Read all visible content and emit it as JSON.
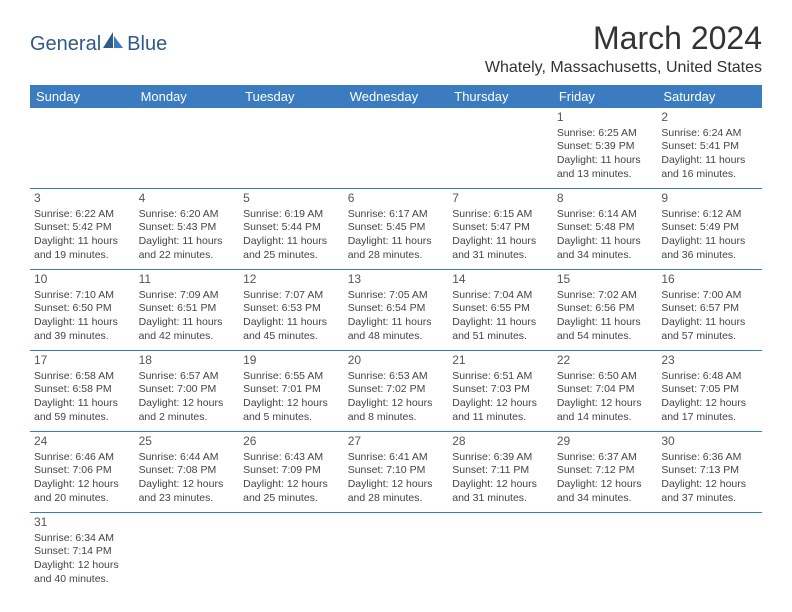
{
  "logo": {
    "text1": "General",
    "text2": "Blue",
    "color": "#2e5b8a",
    "accent": "#3b7bbf"
  },
  "title": "March 2024",
  "location": "Whately, Massachusetts, United States",
  "header_bg": "#3b7bbf",
  "header_fg": "#ffffff",
  "border_color": "#3b7bbf",
  "weekdays": [
    "Sunday",
    "Monday",
    "Tuesday",
    "Wednesday",
    "Thursday",
    "Friday",
    "Saturday"
  ],
  "weeks": [
    [
      null,
      null,
      null,
      null,
      null,
      {
        "n": "1",
        "sunrise": "Sunrise: 6:25 AM",
        "sunset": "Sunset: 5:39 PM",
        "day1": "Daylight: 11 hours",
        "day2": "and 13 minutes."
      },
      {
        "n": "2",
        "sunrise": "Sunrise: 6:24 AM",
        "sunset": "Sunset: 5:41 PM",
        "day1": "Daylight: 11 hours",
        "day2": "and 16 minutes."
      }
    ],
    [
      {
        "n": "3",
        "sunrise": "Sunrise: 6:22 AM",
        "sunset": "Sunset: 5:42 PM",
        "day1": "Daylight: 11 hours",
        "day2": "and 19 minutes."
      },
      {
        "n": "4",
        "sunrise": "Sunrise: 6:20 AM",
        "sunset": "Sunset: 5:43 PM",
        "day1": "Daylight: 11 hours",
        "day2": "and 22 minutes."
      },
      {
        "n": "5",
        "sunrise": "Sunrise: 6:19 AM",
        "sunset": "Sunset: 5:44 PM",
        "day1": "Daylight: 11 hours",
        "day2": "and 25 minutes."
      },
      {
        "n": "6",
        "sunrise": "Sunrise: 6:17 AM",
        "sunset": "Sunset: 5:45 PM",
        "day1": "Daylight: 11 hours",
        "day2": "and 28 minutes."
      },
      {
        "n": "7",
        "sunrise": "Sunrise: 6:15 AM",
        "sunset": "Sunset: 5:47 PM",
        "day1": "Daylight: 11 hours",
        "day2": "and 31 minutes."
      },
      {
        "n": "8",
        "sunrise": "Sunrise: 6:14 AM",
        "sunset": "Sunset: 5:48 PM",
        "day1": "Daylight: 11 hours",
        "day2": "and 34 minutes."
      },
      {
        "n": "9",
        "sunrise": "Sunrise: 6:12 AM",
        "sunset": "Sunset: 5:49 PM",
        "day1": "Daylight: 11 hours",
        "day2": "and 36 minutes."
      }
    ],
    [
      {
        "n": "10",
        "sunrise": "Sunrise: 7:10 AM",
        "sunset": "Sunset: 6:50 PM",
        "day1": "Daylight: 11 hours",
        "day2": "and 39 minutes."
      },
      {
        "n": "11",
        "sunrise": "Sunrise: 7:09 AM",
        "sunset": "Sunset: 6:51 PM",
        "day1": "Daylight: 11 hours",
        "day2": "and 42 minutes."
      },
      {
        "n": "12",
        "sunrise": "Sunrise: 7:07 AM",
        "sunset": "Sunset: 6:53 PM",
        "day1": "Daylight: 11 hours",
        "day2": "and 45 minutes."
      },
      {
        "n": "13",
        "sunrise": "Sunrise: 7:05 AM",
        "sunset": "Sunset: 6:54 PM",
        "day1": "Daylight: 11 hours",
        "day2": "and 48 minutes."
      },
      {
        "n": "14",
        "sunrise": "Sunrise: 7:04 AM",
        "sunset": "Sunset: 6:55 PM",
        "day1": "Daylight: 11 hours",
        "day2": "and 51 minutes."
      },
      {
        "n": "15",
        "sunrise": "Sunrise: 7:02 AM",
        "sunset": "Sunset: 6:56 PM",
        "day1": "Daylight: 11 hours",
        "day2": "and 54 minutes."
      },
      {
        "n": "16",
        "sunrise": "Sunrise: 7:00 AM",
        "sunset": "Sunset: 6:57 PM",
        "day1": "Daylight: 11 hours",
        "day2": "and 57 minutes."
      }
    ],
    [
      {
        "n": "17",
        "sunrise": "Sunrise: 6:58 AM",
        "sunset": "Sunset: 6:58 PM",
        "day1": "Daylight: 11 hours",
        "day2": "and 59 minutes."
      },
      {
        "n": "18",
        "sunrise": "Sunrise: 6:57 AM",
        "sunset": "Sunset: 7:00 PM",
        "day1": "Daylight: 12 hours",
        "day2": "and 2 minutes."
      },
      {
        "n": "19",
        "sunrise": "Sunrise: 6:55 AM",
        "sunset": "Sunset: 7:01 PM",
        "day1": "Daylight: 12 hours",
        "day2": "and 5 minutes."
      },
      {
        "n": "20",
        "sunrise": "Sunrise: 6:53 AM",
        "sunset": "Sunset: 7:02 PM",
        "day1": "Daylight: 12 hours",
        "day2": "and 8 minutes."
      },
      {
        "n": "21",
        "sunrise": "Sunrise: 6:51 AM",
        "sunset": "Sunset: 7:03 PM",
        "day1": "Daylight: 12 hours",
        "day2": "and 11 minutes."
      },
      {
        "n": "22",
        "sunrise": "Sunrise: 6:50 AM",
        "sunset": "Sunset: 7:04 PM",
        "day1": "Daylight: 12 hours",
        "day2": "and 14 minutes."
      },
      {
        "n": "23",
        "sunrise": "Sunrise: 6:48 AM",
        "sunset": "Sunset: 7:05 PM",
        "day1": "Daylight: 12 hours",
        "day2": "and 17 minutes."
      }
    ],
    [
      {
        "n": "24",
        "sunrise": "Sunrise: 6:46 AM",
        "sunset": "Sunset: 7:06 PM",
        "day1": "Daylight: 12 hours",
        "day2": "and 20 minutes."
      },
      {
        "n": "25",
        "sunrise": "Sunrise: 6:44 AM",
        "sunset": "Sunset: 7:08 PM",
        "day1": "Daylight: 12 hours",
        "day2": "and 23 minutes."
      },
      {
        "n": "26",
        "sunrise": "Sunrise: 6:43 AM",
        "sunset": "Sunset: 7:09 PM",
        "day1": "Daylight: 12 hours",
        "day2": "and 25 minutes."
      },
      {
        "n": "27",
        "sunrise": "Sunrise: 6:41 AM",
        "sunset": "Sunset: 7:10 PM",
        "day1": "Daylight: 12 hours",
        "day2": "and 28 minutes."
      },
      {
        "n": "28",
        "sunrise": "Sunrise: 6:39 AM",
        "sunset": "Sunset: 7:11 PM",
        "day1": "Daylight: 12 hours",
        "day2": "and 31 minutes."
      },
      {
        "n": "29",
        "sunrise": "Sunrise: 6:37 AM",
        "sunset": "Sunset: 7:12 PM",
        "day1": "Daylight: 12 hours",
        "day2": "and 34 minutes."
      },
      {
        "n": "30",
        "sunrise": "Sunrise: 6:36 AM",
        "sunset": "Sunset: 7:13 PM",
        "day1": "Daylight: 12 hours",
        "day2": "and 37 minutes."
      }
    ],
    [
      {
        "n": "31",
        "sunrise": "Sunrise: 6:34 AM",
        "sunset": "Sunset: 7:14 PM",
        "day1": "Daylight: 12 hours",
        "day2": "and 40 minutes."
      },
      null,
      null,
      null,
      null,
      null,
      null
    ]
  ]
}
